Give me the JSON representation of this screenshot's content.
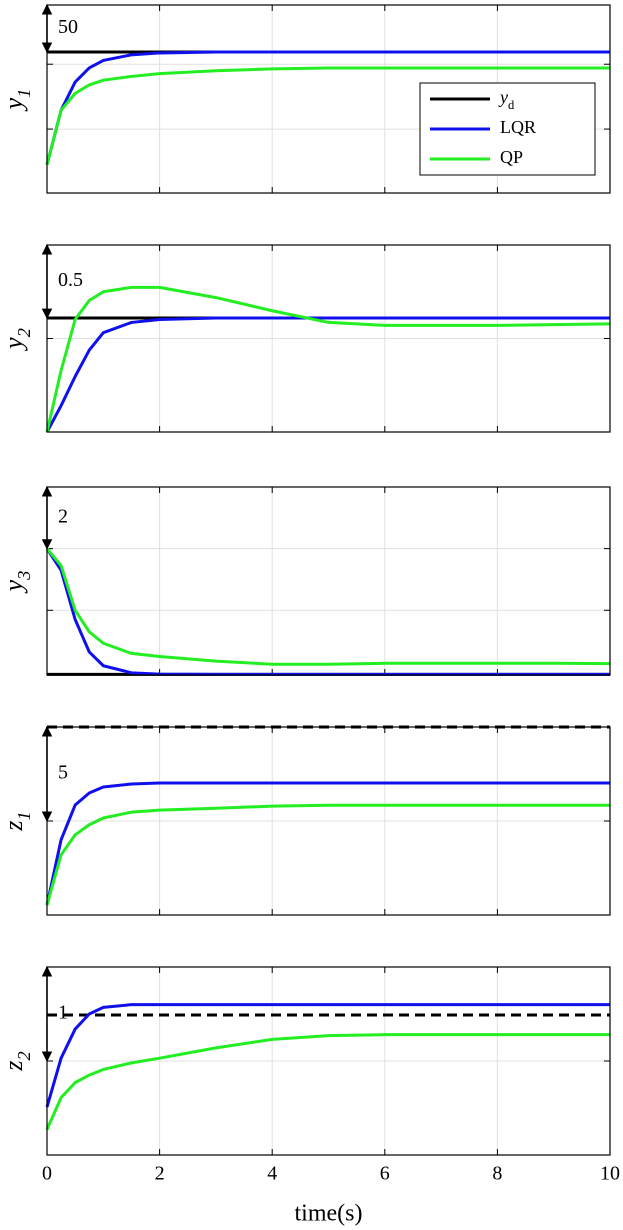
{
  "chart_data": [
    {
      "type": "line",
      "ylabel": "y_1",
      "xlim": [
        0,
        10
      ],
      "xticks": [
        0,
        2,
        4,
        6,
        8,
        10
      ],
      "ylim": [
        -150,
        50
      ],
      "yticks": [
        -13,
        -82
      ],
      "grid": true,
      "legend": "center right",
      "annotation": {
        "text": "50",
        "y": [
          0,
          50
        ]
      },
      "x": [
        0,
        0.25,
        0.5,
        0.75,
        1,
        1.5,
        2,
        3,
        4,
        5,
        6,
        7,
        8,
        9,
        10
      ],
      "series": [
        {
          "name": "y_d",
          "color": "#000000",
          "values": [
            0,
            0,
            0,
            0,
            0,
            0,
            0,
            0,
            0,
            0,
            0,
            0,
            0,
            0,
            0
          ]
        },
        {
          "name": "LQR",
          "color": "#1010ee",
          "values": [
            -120,
            -62,
            -32,
            -17,
            -9,
            -3,
            -1,
            0,
            0,
            0,
            0,
            0,
            0,
            0,
            0
          ]
        },
        {
          "name": "QP",
          "color": "#22ee22",
          "values": [
            -120,
            -62,
            -44,
            -35,
            -30,
            -26,
            -23,
            -20,
            -18,
            -17,
            -17,
            -17,
            -17,
            -17,
            -17
          ]
        }
      ]
    },
    {
      "type": "line",
      "ylabel": "y_2",
      "xlim": [
        0,
        10
      ],
      "xticks": [
        0,
        2,
        4,
        6,
        8,
        10
      ],
      "ylim": [
        -0.78,
        0.5
      ],
      "yticks": [
        -0.14
      ],
      "grid": true,
      "annotation": {
        "text": "0.5",
        "y": [
          0,
          0.5
        ]
      },
      "x": [
        0,
        0.25,
        0.5,
        0.75,
        1,
        1.5,
        2,
        3,
        4,
        5,
        6,
        7,
        8,
        9,
        10
      ],
      "series": [
        {
          "color": "#000000",
          "values": [
            0,
            0,
            0,
            0,
            0,
            0,
            0,
            0,
            0,
            0,
            0,
            0,
            0,
            0,
            0
          ]
        },
        {
          "color": "#1010ee",
          "values": [
            -0.78,
            -0.6,
            -0.4,
            -0.22,
            -0.1,
            -0.03,
            -0.01,
            0,
            0,
            0,
            0,
            0,
            0,
            0,
            0
          ]
        },
        {
          "color": "#22ee22",
          "values": [
            -0.78,
            -0.36,
            -0.01,
            0.12,
            0.18,
            0.21,
            0.21,
            0.14,
            0.05,
            -0.03,
            -0.05,
            -0.05,
            -0.05,
            -0.045,
            -0.04
          ]
        }
      ]
    },
    {
      "type": "line",
      "ylabel": "y_3",
      "xlim": [
        0,
        10
      ],
      "xticks": [
        0,
        2,
        4,
        6,
        8,
        10
      ],
      "ylim": [
        -4.1,
        2
      ],
      "yticks": [
        0,
        -2
      ],
      "grid": true,
      "annotation": {
        "text": "2",
        "y": [
          0,
          2
        ]
      },
      "x": [
        0,
        0.25,
        0.5,
        0.75,
        1,
        1.5,
        2,
        3,
        4,
        5,
        6,
        7,
        8,
        9,
        10
      ],
      "series": [
        {
          "color": "#000000",
          "values": [
            -4.08,
            -4.08,
            -4.08,
            -4.08,
            -4.08,
            -4.08,
            -4.08,
            -4.08,
            -4.08,
            -4.08,
            -4.08,
            -4.08,
            -4.08,
            -4.08,
            -4.08
          ]
        },
        {
          "color": "#1010ee",
          "values": [
            0,
            -0.7,
            -2.3,
            -3.35,
            -3.8,
            -4.03,
            -4.07,
            -4.08,
            -4.08,
            -4.08,
            -4.08,
            -4.08,
            -4.08,
            -4.08,
            -4.08
          ]
        },
        {
          "color": "#22ee22",
          "values": [
            0,
            -0.55,
            -2,
            -2.7,
            -3.07,
            -3.4,
            -3.5,
            -3.65,
            -3.75,
            -3.75,
            -3.72,
            -3.72,
            -3.72,
            -3.72,
            -3.73
          ]
        }
      ]
    },
    {
      "type": "line",
      "ylabel": "z_1",
      "xlim": [
        0,
        10
      ],
      "xticks": [
        0,
        2,
        4,
        6,
        8,
        10
      ],
      "ylim": [
        -5,
        5
      ],
      "yticks": [
        0
      ],
      "grid": true,
      "bound": 5,
      "annotation": {
        "text": "5",
        "y": [
          0,
          5
        ]
      },
      "x": [
        0,
        0.25,
        0.5,
        0.75,
        1,
        1.5,
        2,
        3,
        4,
        5,
        6,
        7,
        8,
        9,
        10
      ],
      "series": [
        {
          "color": "#1010ee",
          "values": [
            -4.47,
            -1,
            0.85,
            1.49,
            1.81,
            1.97,
            2.02,
            2.02,
            2.02,
            2.02,
            2.02,
            2.02,
            2.02,
            2.02,
            2.02
          ]
        },
        {
          "color": "#22ee22",
          "values": [
            -4.47,
            -1.8,
            -0.74,
            -0.2,
            0.16,
            0.47,
            0.58,
            0.68,
            0.79,
            0.84,
            0.84,
            0.84,
            0.84,
            0.84,
            0.84
          ]
        }
      ]
    },
    {
      "type": "line",
      "ylabel": "z_2",
      "xlabel": "time(s)",
      "xlim": [
        0,
        10
      ],
      "xticks": [
        0,
        2,
        4,
        6,
        8,
        10
      ],
      "ylim": [
        -1,
        1
      ],
      "yticks": [
        0
      ],
      "grid": true,
      "bound": 0.49,
      "annotation": {
        "text": "1",
        "y": [
          0,
          1
        ]
      },
      "x": [
        0,
        0.25,
        0.5,
        0.75,
        1,
        1.5,
        2,
        3,
        4,
        5,
        6,
        7,
        8,
        9,
        10
      ],
      "series": [
        {
          "color": "#1010ee",
          "values": [
            -0.49,
            0.03,
            0.34,
            0.5,
            0.57,
            0.6,
            0.6,
            0.6,
            0.6,
            0.6,
            0.6,
            0.6,
            0.6,
            0.6,
            0.6
          ]
        },
        {
          "color": "#22ee22",
          "values": [
            -0.73,
            -0.39,
            -0.23,
            -0.15,
            -0.09,
            -0.02,
            0.03,
            0.14,
            0.23,
            0.27,
            0.28,
            0.28,
            0.28,
            0.28,
            0.28
          ]
        }
      ]
    }
  ]
}
